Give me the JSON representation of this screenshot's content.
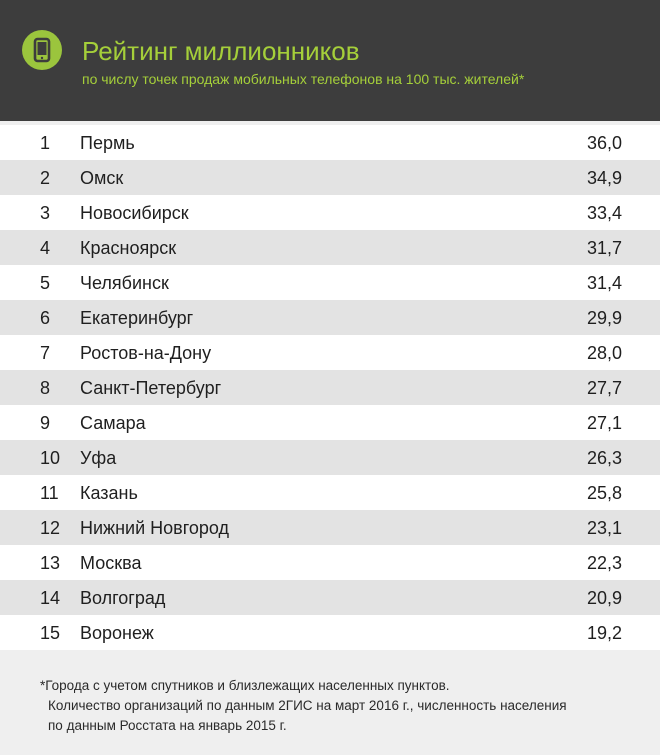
{
  "header": {
    "icon": "mobile-phone-icon",
    "title": "Рейтинг миллионников",
    "subtitle": "по числу точек продаж мобильных телефонов на 100 тыс. жителей*"
  },
  "colors": {
    "accent": "#a5cf3a",
    "header_bg": "#3d3d3d",
    "row_alt": "#e3e3e3"
  },
  "chart_data": {
    "type": "table",
    "title": "Рейтинг миллионников",
    "subtitle": "по числу точек продаж мобильных телефонов на 100 тыс. жителей*",
    "columns": [
      "rank",
      "city",
      "value"
    ],
    "rows": [
      {
        "rank": "1",
        "city": "Пермь",
        "value": "36,0"
      },
      {
        "rank": "2",
        "city": "Омск",
        "value": "34,9"
      },
      {
        "rank": "3",
        "city": "Новосибирск",
        "value": "33,4"
      },
      {
        "rank": "4",
        "city": "Красноярск",
        "value": "31,7"
      },
      {
        "rank": "5",
        "city": "Челябинск",
        "value": "31,4"
      },
      {
        "rank": "6",
        "city": "Екатеринбург",
        "value": "29,9"
      },
      {
        "rank": "7",
        "city": "Ростов-на-Дону",
        "value": "28,0"
      },
      {
        "rank": "8",
        "city": "Санкт-Петербург",
        "value": "27,7"
      },
      {
        "rank": "9",
        "city": "Самара",
        "value": "27,1"
      },
      {
        "rank": "10",
        "city": "Уфа",
        "value": "26,3"
      },
      {
        "rank": "11",
        "city": "Казань",
        "value": "25,8"
      },
      {
        "rank": "12",
        "city": "Нижний Новгород",
        "value": "23,1"
      },
      {
        "rank": "13",
        "city": "Москва",
        "value": "22,3"
      },
      {
        "rank": "14",
        "city": "Волгоград",
        "value": "20,9"
      },
      {
        "rank": "15",
        "city": "Воронеж",
        "value": "19,2"
      }
    ]
  },
  "footnote": {
    "line1": "*Города с учетом спутников и близлежащих населенных пунктов.",
    "line2": "Количество организаций по данным 2ГИС на март 2016 г., численность населения",
    "line3": "по данным Росстата на январь 2015 г."
  }
}
